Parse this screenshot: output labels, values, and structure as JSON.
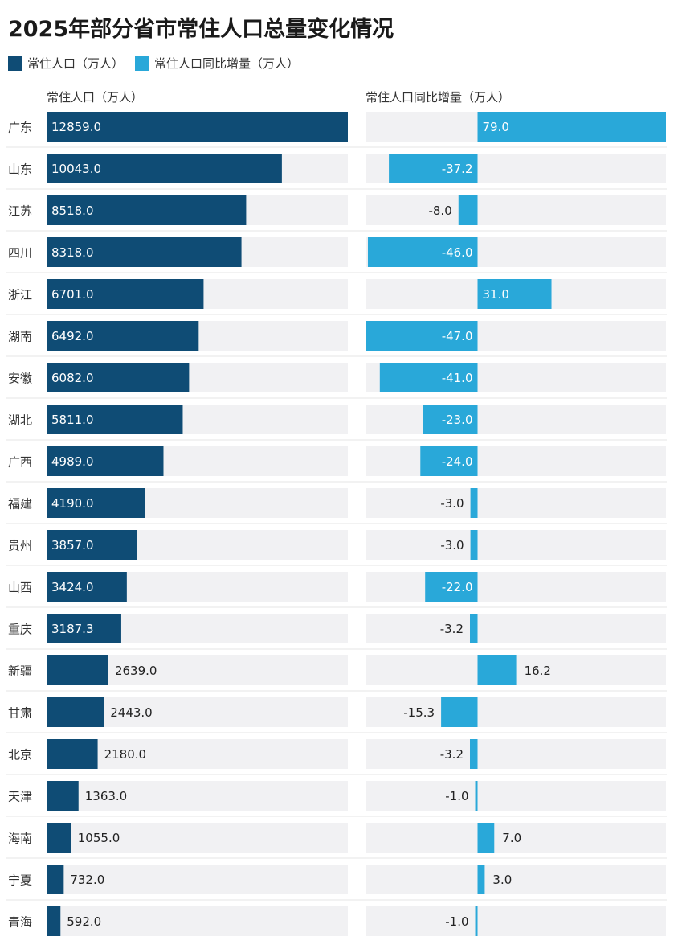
{
  "title": "2025年部分省市常住人口总量变化情况",
  "legend": [
    {
      "label": "常住人口（万人）",
      "color": "#0f4c75"
    },
    {
      "label": "常住人口同比增量（万人）",
      "color": "#29a8d9"
    }
  ],
  "panel_left_label": "常住人口（万人）",
  "panel_right_label": "常住人口同比增量（万人）",
  "chart_data": {
    "type": "bar",
    "orientation": "horizontal",
    "categories": [
      "广东",
      "山东",
      "江苏",
      "四川",
      "浙江",
      "湖南",
      "安徽",
      "湖北",
      "广西",
      "福建",
      "贵州",
      "山西",
      "重庆",
      "新疆",
      "甘肃",
      "北京",
      "天津",
      "海南",
      "宁夏",
      "青海"
    ],
    "series": [
      {
        "name": "常住人口（万人）",
        "color": "#0f4c75",
        "values": [
          12859.0,
          10043.0,
          8518.0,
          8318.0,
          6701.0,
          6492.0,
          6082.0,
          5811.0,
          4989.0,
          4190.0,
          3857.0,
          3424.0,
          3187.3,
          2639.0,
          2443.0,
          2180.0,
          1363.0,
          1055.0,
          732.0,
          592.0
        ],
        "labels": [
          "12859.0",
          "10043.0",
          "8518.0",
          "8318.0",
          "6701.0",
          "6492.0",
          "6082.0",
          "5811.0",
          "4989.0",
          "4190.0",
          "3857.0",
          "3424.0",
          "3187.3",
          "2639.0",
          "2443.0",
          "2180.0",
          "1363.0",
          "1055.0",
          "732.0",
          "592.0"
        ],
        "xlim": [
          0,
          12859
        ]
      },
      {
        "name": "常住人口同比增量（万人）",
        "color": "#29a8d9",
        "values": [
          79.0,
          -37.2,
          -8.0,
          -46.0,
          31.0,
          -47.0,
          -41.0,
          -23.0,
          -24.0,
          -3.0,
          -3.0,
          -22.0,
          -3.2,
          16.2,
          -15.3,
          -3.2,
          -1.0,
          7.0,
          3.0,
          -1.0
        ],
        "labels": [
          "79.0",
          "-37.2",
          "-8.0",
          "-46.0",
          "31.0",
          "-47.0",
          "-41.0",
          "-23.0",
          "-24.0",
          "-3.0",
          "-3.0",
          "-22.0",
          "-3.2",
          "16.2",
          "-15.3",
          "-3.2",
          "-1.0",
          "7.0",
          "3.0",
          "-1.0"
        ],
        "xlim": [
          -47,
          79
        ]
      }
    ],
    "grid": false,
    "legend_position": "top-left"
  }
}
